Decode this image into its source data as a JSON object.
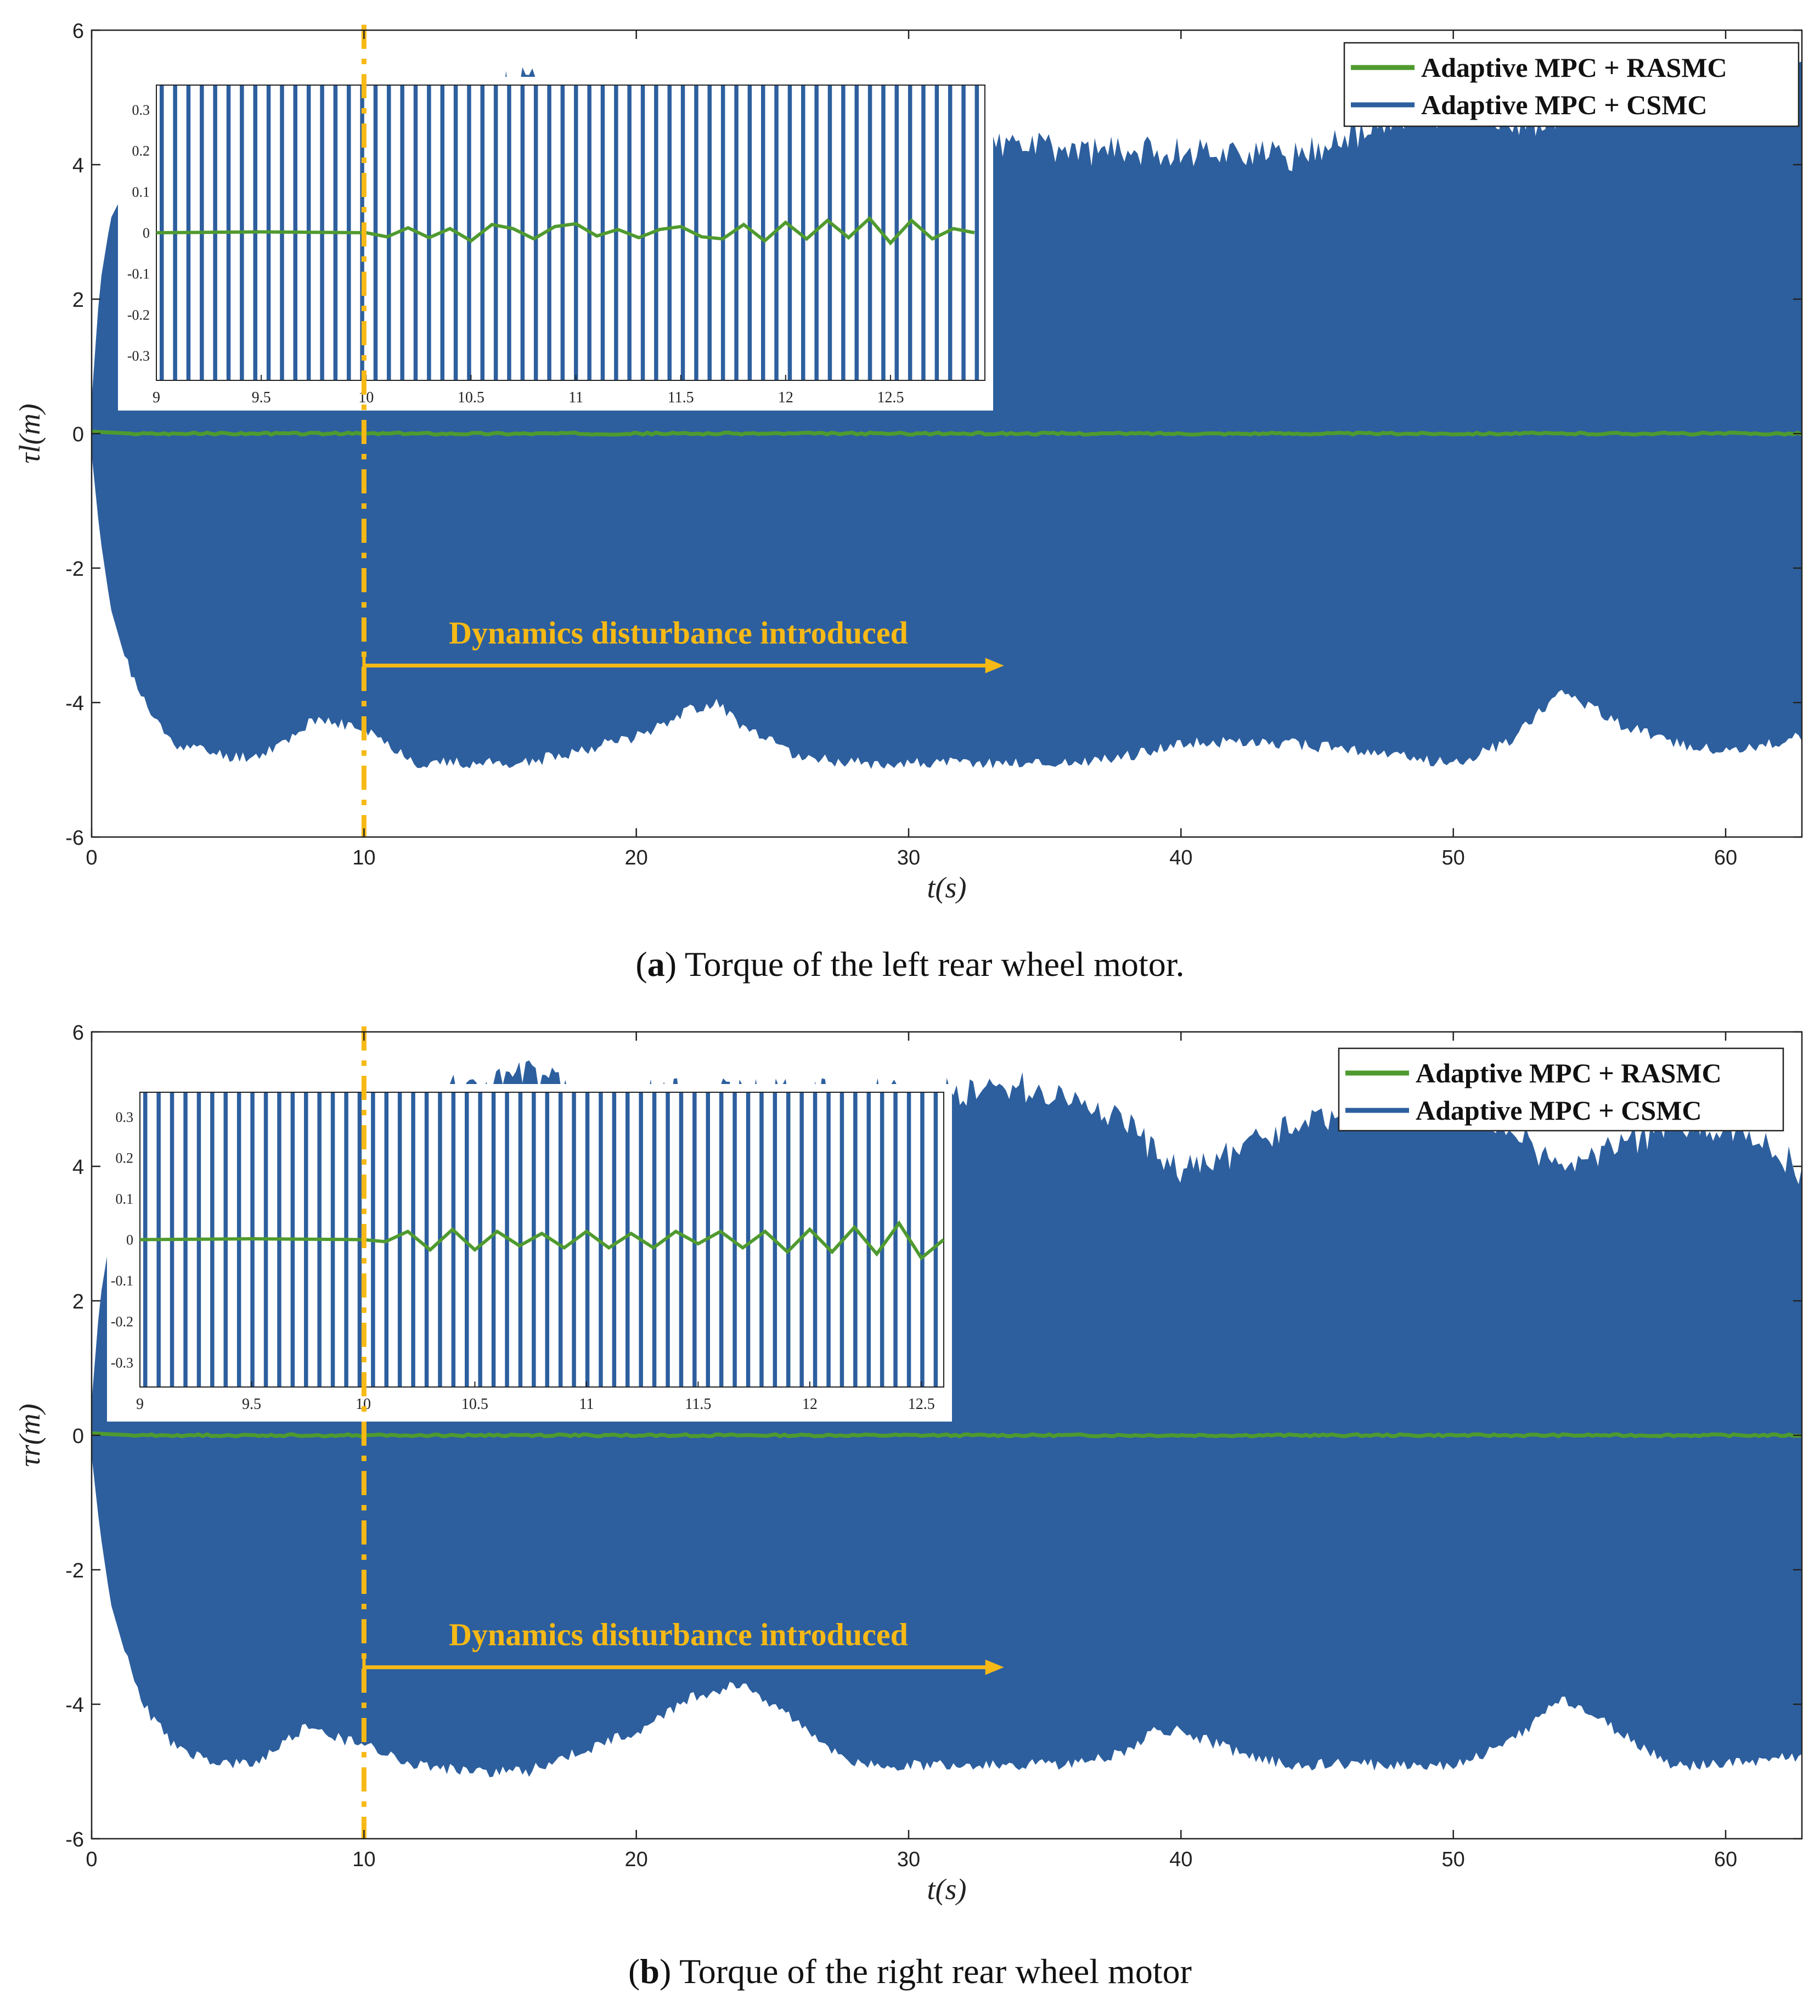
{
  "chart_data": [
    {
      "type": "area",
      "panel": "a",
      "caption_letter": "a",
      "caption_text": "Torque of the left rear wheel motor.",
      "xlabel": "t(s)",
      "ylabel": "τl(m)",
      "xlim": [
        0,
        62.8
      ],
      "ylim": [
        -6,
        6
      ],
      "xticks": [
        0,
        10,
        20,
        30,
        40,
        50,
        60
      ],
      "yticks": [
        -6,
        -4,
        -2,
        0,
        2,
        4,
        6
      ],
      "legend_position": "top-right",
      "series": [
        {
          "name": "Adaptive MPC + RASMC",
          "color": "#4f9a2f",
          "kind": "line",
          "x": [
            0,
            1.5,
            10,
            20,
            30,
            40,
            50,
            62.8
          ],
          "values": [
            0.03,
            0.0,
            0.0,
            0.0,
            0.0,
            0.0,
            0.0,
            0.0
          ]
        },
        {
          "name": "Adaptive MPC + CSMC",
          "color": "#2d5f9e",
          "kind": "envelope",
          "x": [
            0,
            0.3,
            0.7,
            1.2,
            1.6,
            2.2,
            3,
            4,
            5,
            6,
            7,
            8,
            9,
            10,
            12,
            14,
            16,
            18,
            20,
            22,
            23,
            24,
            26,
            28,
            30,
            32,
            34,
            36,
            38,
            40,
            42,
            44,
            46,
            48,
            50,
            52,
            54,
            56,
            58,
            60,
            62,
            62.8
          ],
          "upper": [
            0.5,
            2.2,
            3.2,
            3.6,
            3.9,
            4.1,
            4.2,
            4.3,
            4.4,
            4.5,
            4.6,
            4.6,
            4.6,
            4.6,
            4.8,
            5.0,
            5.3,
            4.5,
            4.3,
            4.2,
            4.3,
            4.1,
            4.1,
            4.1,
            4.1,
            4.2,
            4.3,
            4.2,
            4.2,
            4.2,
            4.2,
            4.1,
            4.4,
            4.6,
            4.8,
            4.6,
            4.7,
            4.8,
            5.1,
            4.9,
            5.2,
            5.4
          ],
          "lower": [
            -0.3,
            -1.5,
            -2.6,
            -3.3,
            -3.7,
            -4.2,
            -4.6,
            -4.7,
            -4.8,
            -4.8,
            -4.6,
            -4.3,
            -4.3,
            -4.4,
            -4.9,
            -4.9,
            -4.9,
            -4.7,
            -4.5,
            -4.1,
            -4.0,
            -4.4,
            -4.8,
            -4.9,
            -4.9,
            -4.9,
            -4.9,
            -4.9,
            -4.8,
            -4.6,
            -4.6,
            -4.6,
            -4.7,
            -4.8,
            -4.9,
            -4.6,
            -3.8,
            -4.3,
            -4.6,
            -4.7,
            -4.6,
            -4.5
          ]
        }
      ],
      "annotation": {
        "text": "Dynamics disturbance introduced",
        "vline_x": 10,
        "arrow_from": 10,
        "arrow_to": 33.5,
        "arrow_y": -3.45
      },
      "inset": {
        "xlim": [
          9,
          12.95
        ],
        "ylim": [
          -0.36,
          0.36
        ],
        "xticks": [
          "9",
          "9.5",
          "10",
          "10.5",
          "11",
          "11.5",
          "12",
          "12.5"
        ],
        "yticks": [
          "0.3",
          "0.2",
          "0.1",
          "0",
          "-0.1",
          "-0.2",
          "-0.3"
        ],
        "rasmc_x": [
          9,
          9.5,
          10,
          10.1,
          10.2,
          10.3,
          10.4,
          10.5,
          10.6,
          10.7,
          10.8,
          10.9,
          11,
          11.1,
          11.2,
          11.3,
          11.4,
          11.5,
          11.6,
          11.7,
          11.8,
          11.9,
          12,
          12.1,
          12.2,
          12.3,
          12.4,
          12.5,
          12.6,
          12.7,
          12.8,
          12.9
        ],
        "rasmc_y": [
          0,
          0.002,
          0,
          -0.01,
          0.012,
          -0.012,
          0.01,
          -0.02,
          0.02,
          0.01,
          -0.015,
          0.015,
          0.022,
          -0.008,
          0.008,
          -0.012,
          0.008,
          0.015,
          -0.01,
          -0.015,
          0.02,
          -0.02,
          0.025,
          -0.015,
          0.03,
          -0.012,
          0.035,
          -0.025,
          0.03,
          -0.015,
          0.01,
          0
        ]
      }
    },
    {
      "type": "area",
      "panel": "b",
      "caption_letter": "b",
      "caption_text": "Torque of the right rear wheel motor",
      "xlabel": "t(s)",
      "ylabel": "τr(m)",
      "xlim": [
        0,
        62.8
      ],
      "ylim": [
        -6,
        6
      ],
      "xticks": [
        0,
        10,
        20,
        30,
        40,
        50,
        60
      ],
      "yticks": [
        -6,
        -4,
        -2,
        0,
        2,
        4,
        6
      ],
      "legend_position": "top-right",
      "series": [
        {
          "name": "Adaptive MPC + RASMC",
          "color": "#4f9a2f",
          "kind": "line",
          "x": [
            0,
            1.5,
            10,
            20,
            30,
            40,
            50,
            62.8
          ],
          "values": [
            0.03,
            0.0,
            0.0,
            0.0,
            0.0,
            0.0,
            0.0,
            0.0
          ]
        },
        {
          "name": "Adaptive MPC + CSMC",
          "color": "#2d5f9e",
          "kind": "envelope",
          "x": [
            0,
            0.3,
            0.7,
            1.2,
            1.6,
            2.2,
            3,
            4,
            5,
            6,
            7,
            8,
            9,
            10,
            12,
            14,
            16,
            18,
            20,
            22,
            24,
            26,
            28,
            30,
            32,
            34,
            36,
            38,
            39,
            40,
            42,
            44,
            46,
            48,
            50,
            52,
            54,
            56,
            58,
            60,
            62,
            62.8
          ],
          "upper": [
            0.5,
            2.0,
            3.0,
            3.5,
            3.9,
            4.1,
            4.3,
            4.4,
            4.6,
            4.8,
            4.9,
            5.0,
            5.0,
            5.1,
            5.1,
            5.2,
            5.4,
            5.1,
            5.1,
            5.1,
            5.1,
            5.1,
            5.1,
            5.1,
            5.1,
            5.2,
            5.0,
            4.7,
            4.2,
            3.9,
            4.2,
            4.6,
            4.8,
            4.9,
            5.0,
            4.6,
            3.9,
            4.3,
            4.6,
            4.6,
            4.2,
            3.9
          ],
          "lower": [
            -0.3,
            -1.4,
            -2.5,
            -3.2,
            -3.7,
            -4.2,
            -4.6,
            -4.8,
            -4.9,
            -4.9,
            -4.6,
            -4.3,
            -4.5,
            -4.6,
            -4.9,
            -5.0,
            -5.0,
            -4.7,
            -4.4,
            -3.9,
            -3.7,
            -4.3,
            -4.9,
            -4.9,
            -4.9,
            -4.9,
            -4.9,
            -4.7,
            -4.4,
            -4.4,
            -4.7,
            -4.9,
            -4.9,
            -4.9,
            -4.9,
            -4.6,
            -3.9,
            -4.4,
            -4.9,
            -4.9,
            -4.8,
            -4.8
          ]
        }
      ],
      "annotation": {
        "text": "Dynamics disturbance introduced",
        "vline_x": 10,
        "arrow_from": 10,
        "arrow_to": 33.5,
        "arrow_y": -3.45
      },
      "inset": {
        "xlim": [
          9,
          12.6
        ],
        "ylim": [
          -0.36,
          0.36
        ],
        "xticks": [
          "9",
          "9.5",
          "10",
          "10.5",
          "11",
          "11.5",
          "12",
          "12.5"
        ],
        "yticks": [
          "0.3",
          "0.2",
          "0.1",
          "0",
          "-0.1",
          "-0.2",
          "-0.3"
        ],
        "rasmc_x": [
          9,
          9.5,
          10,
          10.1,
          10.2,
          10.3,
          10.4,
          10.5,
          10.6,
          10.7,
          10.8,
          10.9,
          11,
          11.1,
          11.2,
          11.3,
          11.4,
          11.5,
          11.6,
          11.7,
          11.8,
          11.9,
          12,
          12.1,
          12.2,
          12.3,
          12.4,
          12.5,
          12.6
        ],
        "rasmc_y": [
          0,
          0.002,
          0,
          -0.005,
          0.02,
          -0.025,
          0.025,
          -0.025,
          0.02,
          -0.015,
          0.015,
          -0.02,
          0.02,
          -0.02,
          0.015,
          -0.02,
          0.02,
          -0.01,
          0.02,
          -0.02,
          0.02,
          -0.03,
          0.025,
          -0.03,
          0.03,
          -0.035,
          0.04,
          -0.045,
          0.0
        ]
      }
    }
  ]
}
